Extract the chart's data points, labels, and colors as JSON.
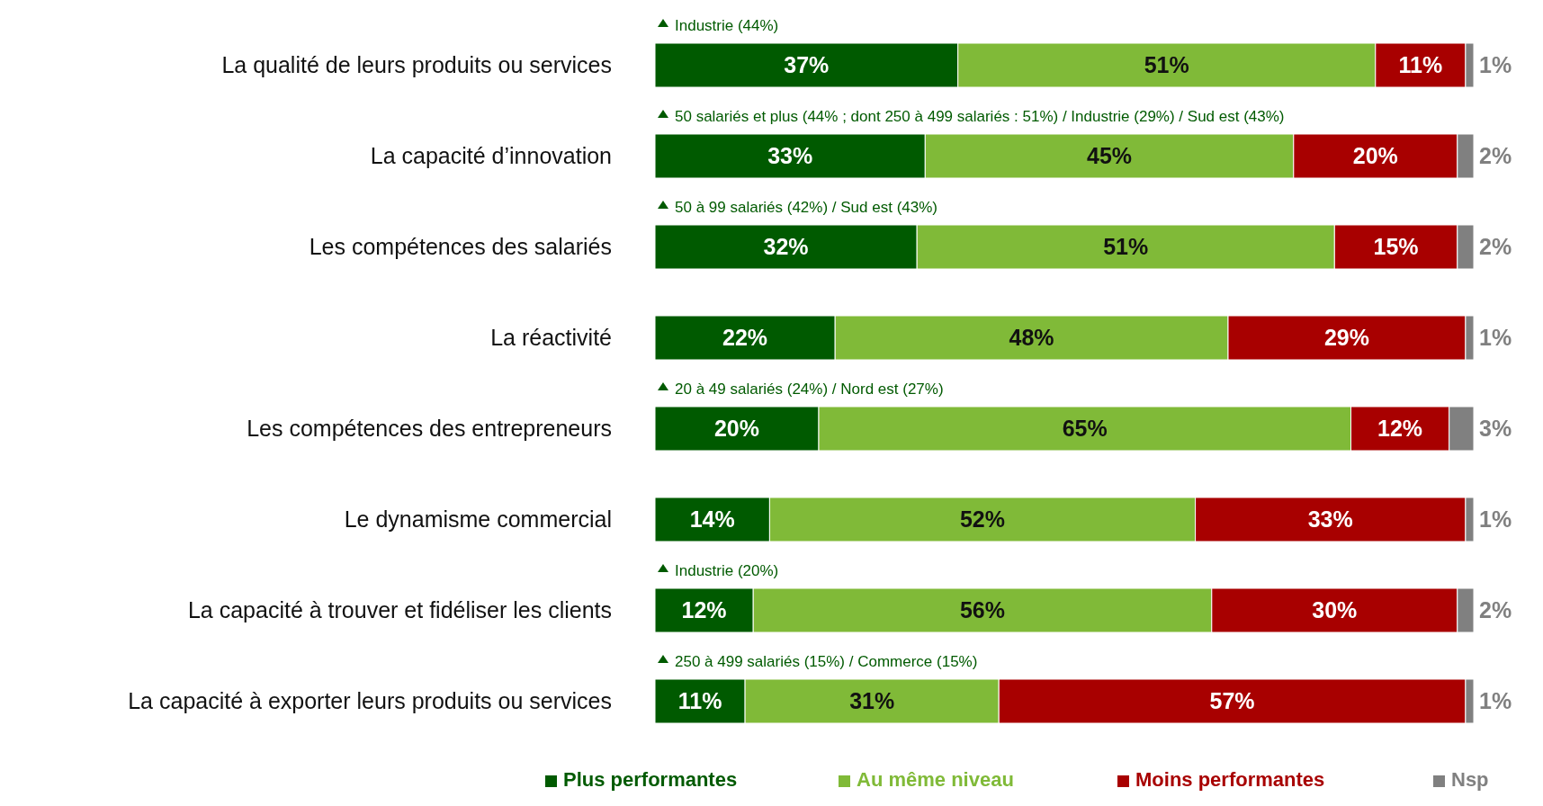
{
  "chart_data": {
    "type": "bar",
    "orientation": "horizontal",
    "stacked": true,
    "xlim": [
      0,
      100
    ],
    "tick_labels": "y",
    "legend": "bottom",
    "categories": [
      "La qualité de leurs produits ou services",
      "La capacité d’innovation",
      "Les compétences des salariés",
      "La réactivité",
      "Les compétences des entrepreneurs",
      "Le dynamisme commercial",
      "La capacité à trouver et fidéliser les clients",
      "La capacité à exporter leurs produits ou services"
    ],
    "series": [
      {
        "name": "Plus performantes",
        "color": "#005a00",
        "values": [
          37,
          33,
          32,
          22,
          20,
          14,
          12,
          11
        ],
        "value_labels": [
          "37%",
          "33%",
          "32%",
          "22%",
          "20%",
          "14%",
          "12%",
          "11%"
        ]
      },
      {
        "name": "Au même niveau",
        "color": "#80ba38",
        "values": [
          51,
          45,
          51,
          48,
          65,
          52,
          56,
          31
        ],
        "value_labels": [
          "51%",
          "45%",
          "51%",
          "48%",
          "65%",
          "52%",
          "56%",
          "31%"
        ]
      },
      {
        "name": "Moins performantes",
        "color": "#a80000",
        "values": [
          11,
          20,
          15,
          29,
          12,
          33,
          30,
          57
        ],
        "value_labels": [
          "11%",
          "20%",
          "15%",
          "29%",
          "12%",
          "33%",
          "30%",
          "57%"
        ]
      },
      {
        "name": "Nsp",
        "color": "#808080",
        "values": [
          1,
          2,
          2,
          1,
          3,
          1,
          2,
          1
        ],
        "value_labels": [
          "1%",
          "2%",
          "2%",
          "1%",
          "3%",
          "1%",
          "2%",
          "1%"
        ]
      }
    ],
    "annotations": [
      "Industrie (44%)",
      "50 salariés et plus (44% ; dont 250 à 499 salariés : 51%) / Industrie (29%) / Sud est (43%)",
      "50 à 99 salariés (42%) / Sud est (43%)",
      "20 à 49 salariés (24%) / Nord est (27%)",
      "Industrie (20%)",
      "250 à 499 salariés (15%) / Commerce (15%)"
    ]
  }
}
